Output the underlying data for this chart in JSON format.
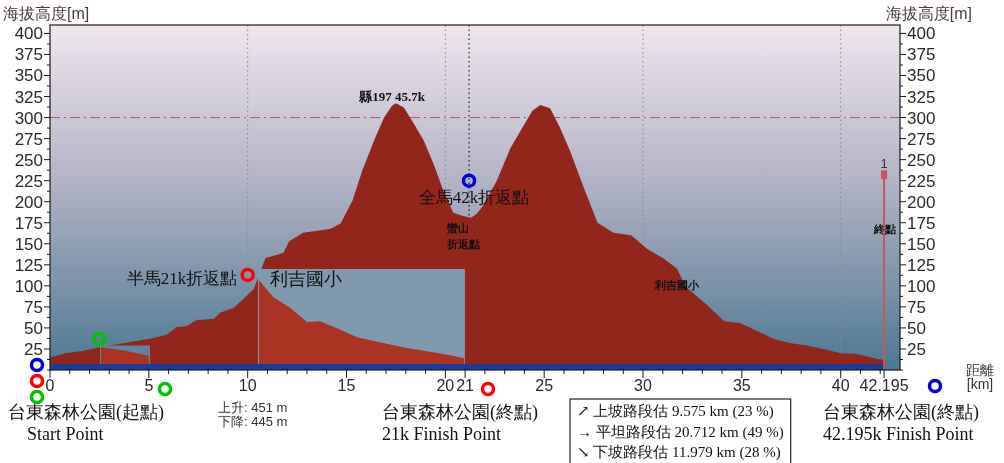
{
  "chart_data": {
    "type": "area",
    "xlabel": "距離\n[km]",
    "ylabel": "海拔高度[m]",
    "y2label": "海拔高度[m]",
    "xlim": [
      0,
      43
    ],
    "ylim": [
      0,
      410
    ],
    "y2lim": [
      0,
      410
    ],
    "xticks": [
      0,
      {
        "value": 1,
        "label": null
      },
      {
        "value": 2,
        "label": null
      },
      {
        "value": 3,
        "label": null
      },
      {
        "value": 4,
        "label": null
      },
      5,
      {
        "value": 6,
        "label": null
      },
      {
        "value": 7,
        "label": null
      },
      {
        "value": 8,
        "label": null
      },
      {
        "value": 9,
        "label": null
      },
      10,
      {
        "value": 11,
        "label": null
      },
      {
        "value": 12,
        "label": null
      },
      {
        "value": 13,
        "label": null
      },
      {
        "value": 14,
        "label": null
      },
      15,
      {
        "value": 16,
        "label": null
      },
      {
        "value": 17,
        "label": null
      },
      {
        "value": 18,
        "label": null
      },
      {
        "value": 19,
        "label": null
      },
      20,
      21,
      {
        "value": 22,
        "label": null
      },
      {
        "value": 23,
        "label": null
      },
      {
        "value": 24,
        "label": null
      },
      25,
      {
        "value": 26,
        "label": null
      },
      {
        "value": 27,
        "label": null
      },
      {
        "value": 28,
        "label": null
      },
      {
        "value": 29,
        "label": null
      },
      30,
      {
        "value": 31,
        "label": null
      },
      {
        "value": 32,
        "label": null
      },
      {
        "value": 33,
        "label": null
      },
      {
        "value": 34,
        "label": null
      },
      35,
      {
        "value": 36,
        "label": null
      },
      {
        "value": 37,
        "label": null
      },
      {
        "value": 38,
        "label": null
      },
      {
        "value": 39,
        "label": null
      },
      40,
      {
        "value": 41,
        "label": null
      },
      {
        "value": 42,
        "label": null
      },
      42.195
    ],
    "yticks": [
      {
        "value": 0,
        "label": null
      },
      {
        "value": 12.5,
        "label": null
      },
      25,
      {
        "value": 37.5,
        "label": null
      },
      50,
      {
        "value": 62.5,
        "label": null
      },
      75,
      {
        "value": 87.5,
        "label": null
      },
      100,
      {
        "value": 112.5,
        "label": null
      },
      125,
      {
        "value": 137.5,
        "label": null
      },
      150,
      {
        "value": 162.5,
        "label": null
      },
      175,
      {
        "value": 187.5,
        "label": null
      },
      200,
      {
        "value": 212.5,
        "label": null
      },
      225,
      {
        "value": 237.5,
        "label": null
      },
      250,
      {
        "value": 262.5,
        "label": null
      },
      275,
      {
        "value": 287.5,
        "label": null
      },
      300,
      {
        "value": 312.5,
        "label": null
      },
      325,
      {
        "value": 337.5,
        "label": null
      },
      350,
      {
        "value": 362.5,
        "label": null
      },
      375,
      {
        "value": 387.5,
        "label": null
      },
      400
    ],
    "y2ticks": [
      {
        "value": 0,
        "label": null
      },
      {
        "value": 12.5,
        "label": null
      },
      25,
      {
        "value": 37.5,
        "label": null
      },
      50,
      {
        "value": 62.5,
        "label": null
      },
      75,
      {
        "value": 87.5,
        "label": null
      },
      100,
      {
        "value": 112.5,
        "label": null
      },
      125,
      {
        "value": 137.5,
        "label": null
      },
      150,
      {
        "value": 162.5,
        "label": null
      },
      175,
      {
        "value": 187.5,
        "label": null
      },
      200,
      {
        "value": 212.5,
        "label": null
      },
      225,
      {
        "value": 237.5,
        "label": null
      },
      250,
      {
        "value": 262.5,
        "label": null
      },
      275,
      {
        "value": 287.5,
        "label": null
      },
      300,
      {
        "value": 312.5,
        "label": null
      },
      325,
      {
        "value": 337.5,
        "label": null
      },
      350,
      {
        "value": 362.5,
        "label": null
      },
      375,
      {
        "value": 387.5,
        "label": null
      },
      400
    ],
    "series": [
      {
        "color": "#93261b",
        "x": [
          0,
          0.8,
          1.7,
          2.53,
          3.0,
          4.0,
          5.06,
          5.9,
          6.4,
          6.9,
          7.4,
          8.3,
          8.6,
          9.3,
          9.8,
          10.3,
          10.9,
          11.8,
          12.1,
          12.8,
          13.7,
          14.2,
          14.7,
          15.3,
          15.8,
          16.4,
          16.9,
          17.3,
          17.5,
          17.9,
          18.4,
          18.9,
          19.4,
          19.9,
          20.4,
          20.9,
          21.3,
          21.6,
          21.9,
          22.6,
          23.3,
          23.8,
          24.4,
          24.8,
          25.3,
          25.8,
          26.3,
          27.0,
          27.7,
          28.5,
          29.4,
          30.2,
          31.0,
          31.7,
          32.2,
          33.2,
          34.1,
          34.9,
          35.8,
          36.6,
          37.4,
          38.3,
          39.1,
          40.0,
          40.8,
          41.7,
          42.195
        ],
        "values": [
          15,
          20,
          23,
          27,
          29,
          33,
          37,
          42,
          51,
          52,
          59,
          61,
          68,
          74,
          85,
          96,
          133,
          139,
          153,
          163,
          166,
          168,
          174,
          201,
          237,
          273,
          300,
          314,
          317,
          312,
          293,
          273,
          245,
          213,
          187,
          183,
          181,
          186,
          195,
          225,
          264,
          284,
          308,
          315,
          311,
          288,
          261,
          217,
          175,
          163,
          160,
          144,
          133,
          121,
          98,
          78,
          58,
          56,
          46,
          37,
          32,
          29,
          25,
          20,
          19,
          14,
          12
        ]
      },
      {
        "color": "#5f849c",
        "x": [
          2.53,
          5.06
        ],
        "values": [
          29,
          29
        ]
      },
      {
        "color": "#7f99ae",
        "x": [
          10.52,
          20.99
        ],
        "values": [
          120,
          120
        ]
      },
      {
        "color": "#aa3323",
        "x": [
          2.58,
          3.2,
          3.8,
          4.4,
          5.0
        ],
        "values": [
          27,
          25,
          23,
          20,
          17
        ]
      },
      {
        "color": "#aa3323",
        "x": [
          10.57,
          11.28,
          12.14,
          13.0,
          13.66,
          14.67,
          15.53,
          16.84,
          18.06,
          19.37,
          20.38,
          20.95
        ],
        "values": [
          107,
          87,
          74,
          57,
          58,
          48,
          39,
          32,
          26,
          21,
          17,
          14
        ]
      },
      {
        "color": "#173c9b",
        "x": [
          0,
          42.195
        ],
        "values": [
          7,
          7
        ]
      },
      {
        "type": "scatter",
        "color": "#00c400",
        "marker": "circle",
        "x": [
          2.5
        ],
        "values": [
          37
        ]
      },
      {
        "type": "scatter",
        "color": "#ff0000",
        "marker": "circle",
        "x": [
          10
        ],
        "values": [
          113
        ]
      },
      {
        "type": "scatter",
        "color": "#0000dd",
        "marker": "circle",
        "x": [
          21.2
        ],
        "values": [
          225
        ]
      },
      {
        "type": "lollipop",
        "color": "#c8565a",
        "marker": "square",
        "x": [
          42.195
        ],
        "values": [
          232
        ]
      }
    ],
    "ref_lines": [
      {
        "axis": "x",
        "value": 10,
        "color": "#8c8c8c",
        "line_style": "dotted"
      },
      {
        "axis": "x",
        "value": 20,
        "color": "#8c8c8c",
        "line_style": "dotted"
      },
      {
        "axis": "x",
        "value": 30,
        "color": "#8c8c8c",
        "line_style": "dotted"
      },
      {
        "axis": "x",
        "value": 40,
        "color": "#8c8c8c",
        "line_style": "dotted"
      },
      {
        "axis": "x",
        "value": 21.2,
        "color": "#000000",
        "line_style": "dotted"
      },
      {
        "axis": "y",
        "value": 300,
        "color": "#b55a5a",
        "line_style": "dashed"
      }
    ],
    "annotations": [
      "縣197 45.7k",
      "全馬42k折返點",
      "半馬21k折返點",
      "利吉國小",
      "蠻山折返點",
      "利吉國小",
      "終點",
      "台東森林公園(起點)",
      "Start Point",
      "上升: 451 m",
      "下降: 445 m",
      "台東森林公園(終點)",
      "21k Finish Point",
      "↗ 上坡路段估 9.575 km (23 %)",
      "→ 平坦路段估 20.712 km (49 %)",
      "↘ 下坡路段估 11.979 km (28 %)",
      "台東森林公園(終點)",
      "42.195k Finish Point",
      {
        "text": "1",
        "x": 42.195,
        "y": 232
      }
    ]
  }
}
